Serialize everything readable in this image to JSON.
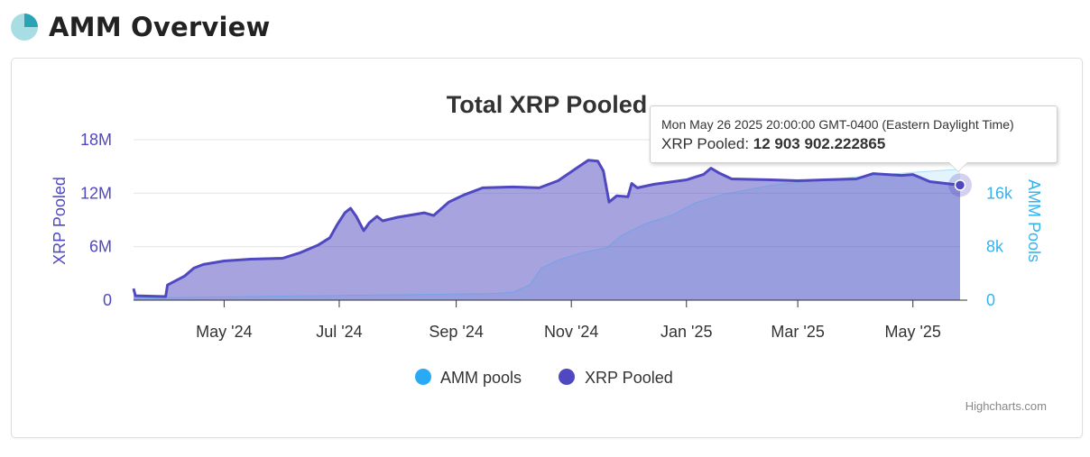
{
  "page": {
    "title": "AMM Overview",
    "icon": "pie-chart-icon",
    "icon_color": "#29a3b5"
  },
  "chart_data": {
    "type": "area",
    "title": "Total XRP Pooled",
    "credits": "Highcharts.com",
    "legend_placement": "bottom-center",
    "grid": true,
    "x_axis": {
      "type": "datetime",
      "range": [
        "2024-03-14",
        "2025-05-26"
      ],
      "tick_labels": [
        "May '24",
        "Jul '24",
        "Sep '24",
        "Nov '24",
        "Jan '25",
        "Mar '25",
        "May '25"
      ],
      "tick_dates": [
        "2024-05-01",
        "2024-07-01",
        "2024-09-01",
        "2024-11-01",
        "2025-01-01",
        "2025-03-01",
        "2025-05-01"
      ]
    },
    "y_axes": [
      {
        "title": "XRP Pooled",
        "side": "left",
        "range": [
          0,
          18000000
        ],
        "tick_values": [
          0,
          6000000,
          12000000,
          18000000
        ],
        "tick_labels": [
          "0",
          "6M",
          "12M",
          "18M"
        ],
        "color": "#5048c0"
      },
      {
        "title": "AMM Pools",
        "side": "right",
        "range": [
          0,
          24000
        ],
        "tick_values": [
          0,
          8000,
          16000
        ],
        "tick_labels": [
          "0",
          "8k",
          "16k"
        ],
        "color": "#33b3f0"
      }
    ],
    "series": [
      {
        "name": "AMM pools",
        "axis": "right",
        "color": "#29aaf4",
        "points": [
          [
            "2024-03-14",
            300
          ],
          [
            "2024-04-15",
            450
          ],
          [
            "2024-05-20",
            560
          ],
          [
            "2024-07-01",
            720
          ],
          [
            "2024-08-15",
            860
          ],
          [
            "2024-09-20",
            1000
          ],
          [
            "2024-10-01",
            1200
          ],
          [
            "2024-10-10",
            2300
          ],
          [
            "2024-10-16",
            4800
          ],
          [
            "2024-10-25",
            6000
          ],
          [
            "2024-11-05",
            7000
          ],
          [
            "2024-11-20",
            7900
          ],
          [
            "2024-11-27",
            9600
          ],
          [
            "2024-12-10",
            11400
          ],
          [
            "2024-12-25",
            12800
          ],
          [
            "2025-01-05",
            14500
          ],
          [
            "2025-01-20",
            15800
          ],
          [
            "2025-02-15",
            17200
          ],
          [
            "2025-03-15",
            18000
          ],
          [
            "2025-04-15",
            18800
          ],
          [
            "2025-05-26",
            19600
          ]
        ]
      },
      {
        "name": "XRP Pooled",
        "axis": "left",
        "color": "#5048c0",
        "points": [
          [
            "2024-03-14",
            1300000
          ],
          [
            "2024-03-15",
            500000
          ],
          [
            "2024-03-31",
            400000
          ],
          [
            "2024-04-01",
            1700000
          ],
          [
            "2024-04-10",
            2700000
          ],
          [
            "2024-04-15",
            3600000
          ],
          [
            "2024-04-20",
            4000000
          ],
          [
            "2024-05-01",
            4400000
          ],
          [
            "2024-05-15",
            4600000
          ],
          [
            "2024-06-01",
            4700000
          ],
          [
            "2024-06-10",
            5300000
          ],
          [
            "2024-06-20",
            6200000
          ],
          [
            "2024-06-26",
            7000000
          ],
          [
            "2024-06-30",
            8500000
          ],
          [
            "2024-07-04",
            9800000
          ],
          [
            "2024-07-07",
            10300000
          ],
          [
            "2024-07-10",
            9400000
          ],
          [
            "2024-07-14",
            7800000
          ],
          [
            "2024-07-17",
            8700000
          ],
          [
            "2024-07-21",
            9400000
          ],
          [
            "2024-07-24",
            8900000
          ],
          [
            "2024-08-01",
            9300000
          ],
          [
            "2024-08-15",
            9800000
          ],
          [
            "2024-08-20",
            9500000
          ],
          [
            "2024-08-28",
            11000000
          ],
          [
            "2024-09-05",
            11800000
          ],
          [
            "2024-09-15",
            12600000
          ],
          [
            "2024-10-01",
            12700000
          ],
          [
            "2024-10-15",
            12600000
          ],
          [
            "2024-10-25",
            13400000
          ],
          [
            "2024-11-05",
            15000000
          ],
          [
            "2024-11-10",
            15700000
          ],
          [
            "2024-11-15",
            15600000
          ],
          [
            "2024-11-18",
            14500000
          ],
          [
            "2024-11-21",
            11000000
          ],
          [
            "2024-11-25",
            11700000
          ],
          [
            "2024-12-01",
            11600000
          ],
          [
            "2024-12-03",
            13100000
          ],
          [
            "2024-12-06",
            12600000
          ],
          [
            "2024-12-15",
            13000000
          ],
          [
            "2025-01-01",
            13500000
          ],
          [
            "2025-01-10",
            14100000
          ],
          [
            "2025-01-14",
            14800000
          ],
          [
            "2025-01-18",
            14300000
          ],
          [
            "2025-01-25",
            13600000
          ],
          [
            "2025-02-15",
            13500000
          ],
          [
            "2025-03-01",
            13400000
          ],
          [
            "2025-03-15",
            13500000
          ],
          [
            "2025-04-01",
            13600000
          ],
          [
            "2025-04-10",
            14200000
          ],
          [
            "2025-04-25",
            14000000
          ],
          [
            "2025-05-01",
            14100000
          ],
          [
            "2025-05-10",
            13300000
          ],
          [
            "2025-05-26",
            12903902.222865
          ]
        ]
      }
    ],
    "tooltip": {
      "date": "Mon May 26 2025 20:00:00 GMT-0400 (Eastern Daylight Time)",
      "series_name": "XRP Pooled",
      "value": "12 903 902.222865",
      "value_numeric": 12903902.222865,
      "point_date": "2025-05-26"
    }
  }
}
